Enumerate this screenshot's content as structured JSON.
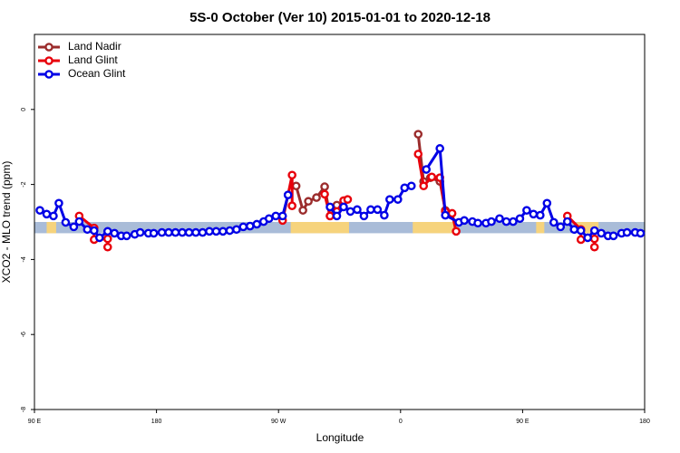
{
  "chart_data": {
    "type": "line",
    "title": "5S-0 October (Ver 10)   2015-01-01 to 2020-12-18",
    "x_label": "Longitude",
    "y_label": "XCO2 - MLO trend (ppm)",
    "xlim": [
      90,
      540
    ],
    "ylim": [
      -8,
      2
    ],
    "xticks": [
      {
        "value": 90,
        "label": "90 E"
      },
      180,
      {
        "value": 270,
        "label": "90 W"
      },
      {
        "value": 360,
        "label": "0"
      },
      {
        "value": 450,
        "label": "90 E"
      },
      {
        "value": 540,
        "label": "180"
      }
    ],
    "yticks": [
      -8,
      -6,
      -4,
      -2,
      0
    ],
    "legend": "top-left",
    "band": {
      "ylim": [
        -3.3,
        -3.0
      ],
      "color": "#a9bcd8",
      "land_color": "#f6d37c",
      "land": [
        [
          99,
          106
        ],
        [
          279,
          322
        ],
        [
          369,
          399
        ],
        [
          460,
          466
        ],
        [
          490,
          506
        ]
      ]
    },
    "series": [
      {
        "name": "Land Nadir",
        "color": "#9b2c2c",
        "x": [
          283,
          288,
          292,
          298,
          304,
          308,
          313,
          null,
          373,
          377,
          382,
          389,
          393
        ],
        "values": [
          -2.04,
          -2.69,
          -2.45,
          -2.35,
          -2.06,
          -2.84,
          -2.55,
          null,
          -0.66,
          -1.92,
          -1.82,
          -1.92,
          -2.69
        ]
      },
      {
        "name": "Land Glint",
        "color": "#e8000b",
        "x": [
          123,
          134,
          134,
          144,
          144,
          null,
          273,
          280,
          280,
          null,
          304,
          308,
          313,
          318,
          321,
          null,
          373,
          377,
          383,
          389,
          393,
          398,
          401,
          null,
          483,
          493,
          493,
          503,
          503
        ],
        "values": [
          -2.84,
          -3.16,
          -3.47,
          -3.45,
          -3.67,
          null,
          -2.96,
          -1.75,
          -2.57,
          null,
          -2.26,
          -2.84,
          -2.72,
          -2.43,
          -2.4,
          null,
          -1.19,
          -2.04,
          -1.8,
          -1.82,
          -2.72,
          -2.77,
          -3.25,
          null,
          -2.84,
          -3.2,
          -3.47,
          -3.45,
          -3.67
        ]
      },
      {
        "name": "Ocean Glint",
        "color": "#0000e6",
        "x": [
          94,
          99,
          104,
          108,
          113,
          119,
          123,
          129,
          134,
          138,
          144,
          149,
          154,
          158,
          164,
          168,
          174,
          178,
          184,
          189,
          194,
          199,
          204,
          209,
          214,
          219,
          224,
          229,
          234,
          239,
          244,
          249,
          254,
          259,
          263,
          268,
          273,
          277,
          null,
          308,
          313,
          318,
          323,
          328,
          333,
          338,
          343,
          348,
          352,
          358,
          363,
          368,
          null,
          379,
          389,
          393,
          403,
          407,
          413,
          417,
          423,
          427,
          433,
          438,
          443,
          448,
          453,
          458,
          463,
          468,
          473,
          478,
          483,
          488,
          493,
          498,
          503,
          508,
          513,
          517,
          523,
          527,
          533,
          537
        ],
        "values": [
          -2.69,
          -2.79,
          -2.84,
          -2.5,
          -3.01,
          -3.13,
          -2.99,
          -3.2,
          -3.23,
          -3.42,
          -3.25,
          -3.3,
          -3.37,
          -3.37,
          -3.33,
          -3.28,
          -3.3,
          -3.3,
          -3.28,
          -3.28,
          -3.28,
          -3.28,
          -3.28,
          -3.28,
          -3.28,
          -3.25,
          -3.25,
          -3.25,
          -3.23,
          -3.2,
          -3.13,
          -3.11,
          -3.06,
          -2.99,
          -2.91,
          -2.84,
          -2.84,
          -2.28,
          null,
          -2.6,
          -2.84,
          -2.6,
          -2.72,
          -2.67,
          -2.84,
          -2.67,
          -2.67,
          -2.82,
          -2.4,
          -2.4,
          -2.09,
          -2.04,
          null,
          -1.6,
          -1.04,
          -2.82,
          -3.01,
          -2.96,
          -2.99,
          -3.03,
          -3.03,
          -2.99,
          -2.91,
          -2.99,
          -2.99,
          -2.91,
          -2.69,
          -2.79,
          -2.82,
          -2.5,
          -3.01,
          -3.13,
          -2.99,
          -3.2,
          -3.23,
          -3.42,
          -3.23,
          -3.3,
          -3.37,
          -3.37,
          -3.3,
          -3.28,
          -3.28,
          -3.3
        ]
      }
    ]
  }
}
